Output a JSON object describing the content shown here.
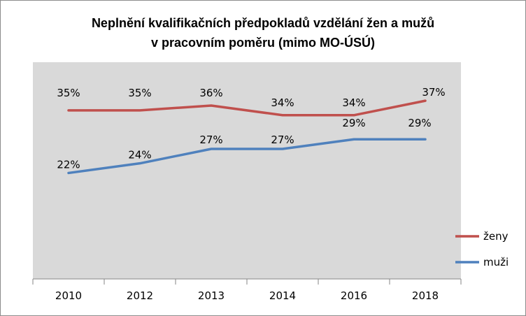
{
  "chart_data": {
    "type": "line",
    "title_line1": "Neplnění kvalifikačních předpokladů vzdělání žen a mužů",
    "title_line2": "v pracovním poměru (mimo MO-ÚSÚ)",
    "x": [
      "2010",
      "2012",
      "2013",
      "2014",
      "2016",
      "2018"
    ],
    "ylim": [
      0,
      45
    ],
    "grid": false,
    "legend_position": "right",
    "series": [
      {
        "name": "ženy",
        "color": "#c0504d",
        "values": [
          35,
          35,
          36,
          34,
          34,
          37
        ],
        "labels": [
          "35%",
          "35%",
          "36%",
          "34%",
          "34%",
          "37%"
        ]
      },
      {
        "name": "muži",
        "color": "#4f81bd",
        "values": [
          22,
          24,
          27,
          27,
          29,
          29
        ],
        "labels": [
          "22%",
          "24%",
          "27%",
          "27%",
          "29%",
          "29%"
        ]
      }
    ]
  }
}
